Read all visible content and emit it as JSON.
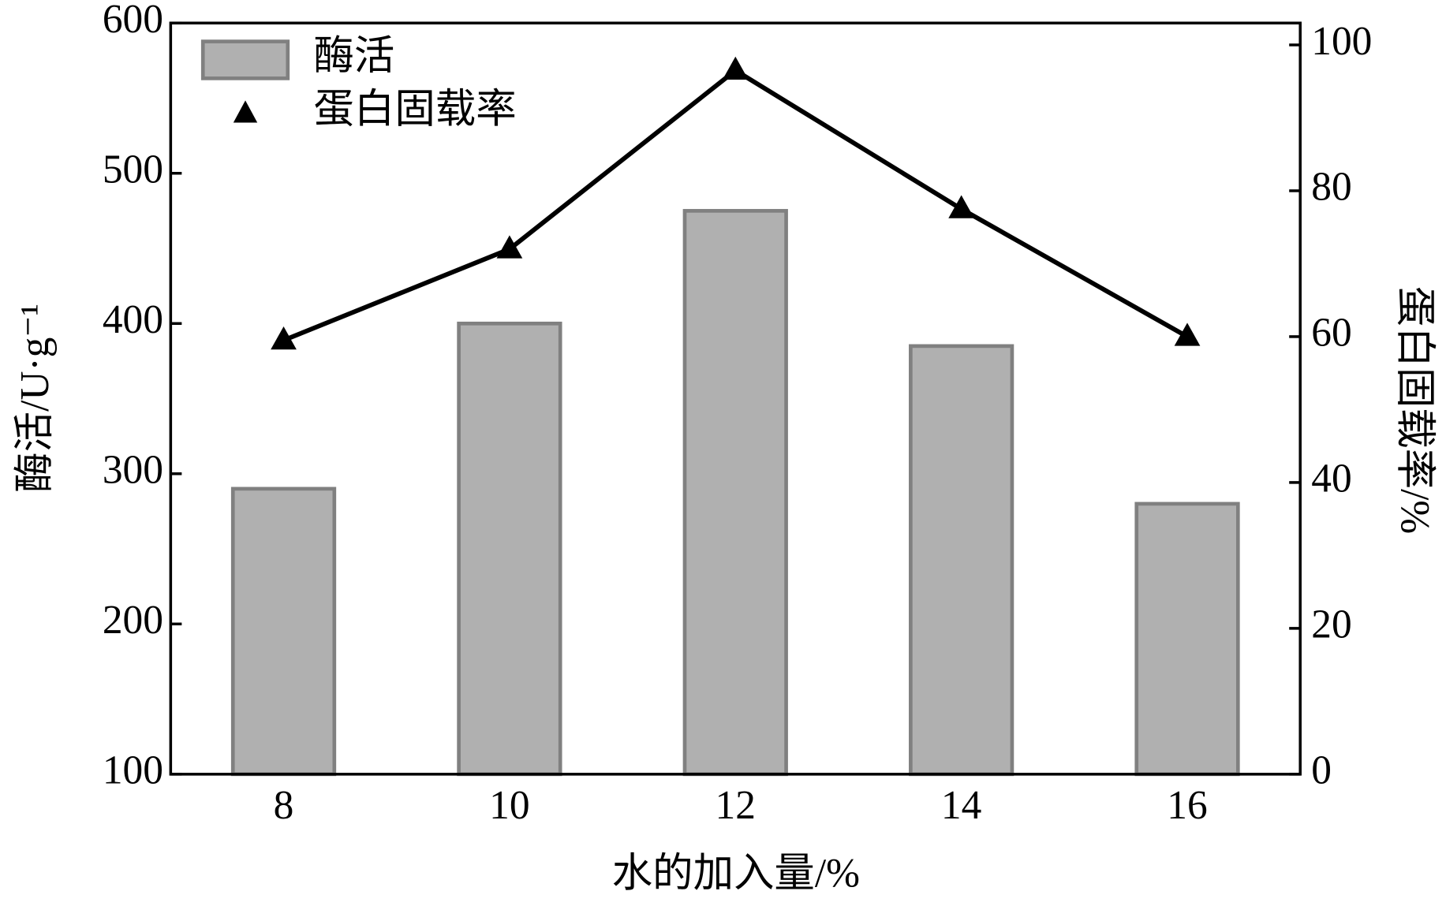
{
  "chart_data": {
    "type": "bar",
    "x_label": "水的加入量/%",
    "y_label": "酶活/U·g⁻¹",
    "y2_label": "蛋白固载率/%",
    "categories": [
      "8",
      "10",
      "12",
      "14",
      "16"
    ],
    "series": [
      {
        "name": "酶活",
        "type": "bar",
        "color": "#b0b0b0",
        "values": [
          290,
          400,
          475,
          385,
          280
        ]
      },
      {
        "name": "蛋白固载率",
        "type": "line",
        "axis": "y2",
        "color": "#000000",
        "values": [
          59.5,
          72,
          96.5,
          77.5,
          60
        ]
      }
    ],
    "ylim": [
      100,
      600
    ],
    "yticks": [
      100,
      200,
      300,
      400,
      500,
      600
    ],
    "y2lim": [
      0,
      103
    ],
    "y2ticks": [
      0,
      20,
      40,
      60,
      80,
      100
    ],
    "legend": "upper left"
  }
}
